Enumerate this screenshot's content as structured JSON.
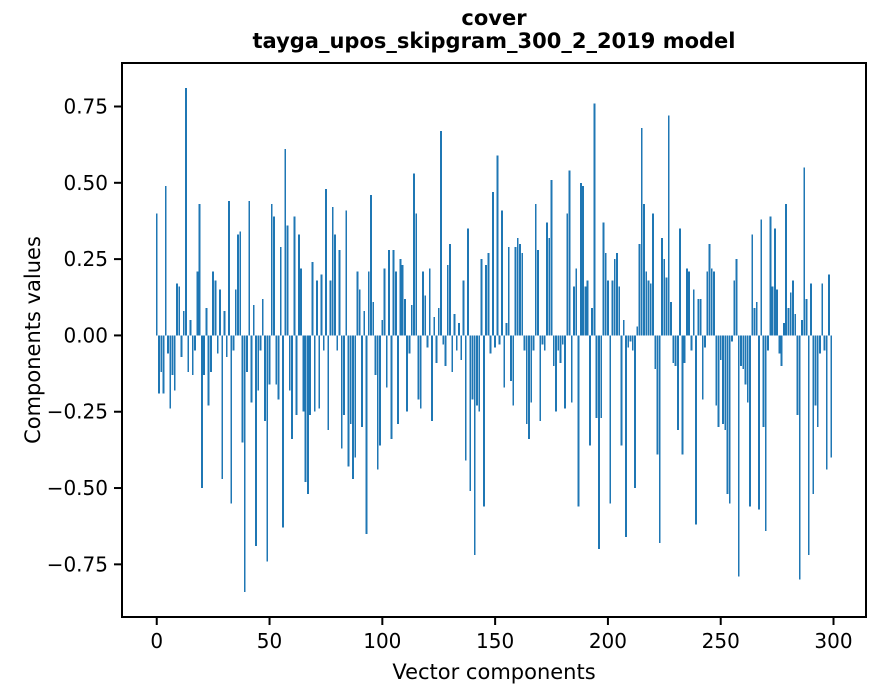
{
  "figure": {
    "title_line1": "cover",
    "title_line2": "tayga_upos_skipgram_300_2_2019 model",
    "xlabel": "Vector components",
    "ylabel": "Components values"
  },
  "chart_data": {
    "type": "bar",
    "title": "cover\ntayga_upos_skipgram_300_2_2019 model",
    "xlabel": "Vector components",
    "ylabel": "Components values",
    "bar_color": "#1f77b4",
    "axis_color": "#000000",
    "background_color": "#ffffff",
    "grid": false,
    "legend": null,
    "x_start": 0,
    "x_ticks": [
      0,
      50,
      100,
      150,
      200,
      250,
      300
    ],
    "x_tick_labels": [
      "0",
      "50",
      "100",
      "150",
      "200",
      "250",
      "300"
    ],
    "y_ticks": [
      0.75,
      0.5,
      0.25,
      0.0,
      -0.25,
      -0.5,
      -0.75
    ],
    "y_tick_labels": [
      "0.75",
      "0.50",
      "0.25",
      "0.00",
      "−0.25",
      "−0.50",
      "−0.75"
    ],
    "xlim": [
      -15.4,
      314.4
    ],
    "ylim": [
      -0.9225,
      0.8925
    ],
    "bar_width": 0.8,
    "values": [
      0.4,
      -0.19,
      -0.12,
      -0.19,
      0.49,
      -0.06,
      -0.24,
      -0.13,
      -0.18,
      0.17,
      0.16,
      -0.07,
      0.08,
      0.81,
      -0.12,
      0.05,
      -0.13,
      -0.05,
      0.21,
      0.43,
      -0.5,
      -0.13,
      0.09,
      -0.23,
      -0.12,
      0.21,
      0.18,
      -0.06,
      0.15,
      -0.47,
      0.08,
      -0.07,
      0.44,
      -0.55,
      -0.05,
      0.15,
      0.33,
      0.34,
      -0.35,
      -0.84,
      -0.12,
      0.44,
      -0.22,
      0.1,
      -0.69,
      -0.18,
      -0.05,
      0.12,
      -0.28,
      -0.74,
      -0.16,
      0.43,
      0.39,
      -0.16,
      -0.21,
      0.29,
      -0.63,
      0.61,
      0.36,
      -0.18,
      -0.34,
      0.39,
      -0.26,
      0.33,
      0.22,
      -0.25,
      -0.48,
      -0.52,
      -0.26,
      0.24,
      -0.25,
      0.18,
      -0.24,
      0.2,
      -0.05,
      0.48,
      -0.31,
      0.18,
      0.42,
      0.33,
      -0.05,
      0.28,
      -0.37,
      -0.26,
      0.41,
      -0.43,
      -0.29,
      -0.47,
      -0.4,
      0.21,
      0.15,
      -0.3,
      0.08,
      -0.65,
      0.21,
      0.46,
      0.11,
      -0.13,
      -0.44,
      -0.36,
      0.05,
      0.22,
      -0.17,
      0.28,
      -0.34,
      0.28,
      0.21,
      -0.29,
      0.25,
      0.23,
      0.12,
      -0.25,
      -0.06,
      0.1,
      0.53,
      0.4,
      -0.21,
      -0.24,
      0.21,
      0.13,
      -0.04,
      0.22,
      -0.28,
      0.06,
      -0.09,
      0.09,
      0.67,
      -0.03,
      -0.1,
      0.23,
      0.3,
      -0.12,
      0.07,
      -0.05,
      0.04,
      -0.08,
      0.18,
      -0.41,
      0.35,
      -0.51,
      -0.21,
      -0.72,
      -0.23,
      -0.25,
      0.25,
      -0.56,
      0.23,
      0.27,
      -0.06,
      0.47,
      -0.04,
      0.59,
      -0.03,
      0.41,
      -0.17,
      0.04,
      0.29,
      -0.15,
      -0.23,
      0.29,
      0.32,
      0.3,
      0.27,
      -0.05,
      -0.29,
      -0.34,
      -0.22,
      -0.05,
      0.43,
      0.28,
      -0.28,
      -0.03,
      -0.05,
      0.37,
      0.32,
      0.51,
      -0.1,
      -0.25,
      -0.05,
      -0.09,
      -0.03,
      -0.24,
      0.4,
      0.54,
      -0.22,
      0.16,
      0.22,
      -0.56,
      0.5,
      0.49,
      0.16,
      0.18,
      -0.36,
      0.09,
      0.76,
      -0.27,
      -0.7,
      -0.27,
      0.37,
      0.27,
      0.18,
      -0.55,
      0.18,
      0.25,
      0.27,
      0.16,
      -0.36,
      0.05,
      -0.66,
      -0.04,
      -0.02,
      -0.05,
      -0.5,
      0.03,
      0.3,
      0.68,
      0.43,
      0.21,
      0.18,
      0.17,
      0.4,
      -0.11,
      -0.39,
      -0.68,
      0.32,
      0.25,
      0.19,
      0.72,
      0.11,
      -0.09,
      -0.1,
      -0.31,
      0.35,
      -0.39,
      -0.09,
      0.22,
      0.21,
      -0.05,
      0.15,
      -0.62,
      0.12,
      0.12,
      -0.21,
      -0.04,
      0.21,
      0.3,
      0.22,
      0.21,
      -0.23,
      -0.3,
      -0.08,
      -0.29,
      -0.31,
      -0.52,
      -0.55,
      -0.02,
      0.18,
      0.25,
      -0.79,
      -0.1,
      -0.11,
      -0.16,
      -0.22,
      -0.56,
      0.33,
      0.09,
      0.11,
      -0.57,
      0.38,
      -0.3,
      -0.64,
      -0.05,
      0.39,
      0.16,
      0.35,
      0.15,
      -0.06,
      -0.1,
      0.04,
      0.43,
      0.09,
      0.14,
      0.18,
      0.07,
      -0.26,
      -0.8,
      0.05,
      0.55,
      0.12,
      -0.72,
      0.17,
      -0.52,
      -0.23,
      -0.3,
      -0.06,
      0.17,
      -0.05,
      -0.44,
      0.2,
      -0.4
    ]
  }
}
